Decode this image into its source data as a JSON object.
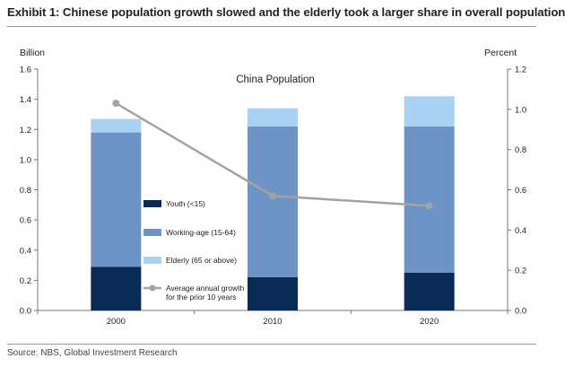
{
  "title": "Exhibit 1: Chinese population growth slowed and the elderly took a larger share in overall population",
  "source": "Source: NBS, Global Investment Research",
  "chart_data": {
    "type": "bar",
    "stacked": true,
    "title": "China Population",
    "ylabel_left": "Billion",
    "ylabel_right": "Percent",
    "categories": [
      "2000",
      "2010",
      "2020"
    ],
    "ylim_left": [
      0,
      1.6
    ],
    "yticks_left": [
      "0.0",
      "0.2",
      "0.4",
      "0.6",
      "0.8",
      "1.0",
      "1.2",
      "1.4",
      "1.6"
    ],
    "ylim_right": [
      0,
      1.2
    ],
    "yticks_right": [
      "0.0",
      "0.2",
      "0.4",
      "0.6",
      "0.8",
      "1.0",
      "1.2"
    ],
    "series": [
      {
        "name": "Youth (<15)",
        "axis": "left",
        "color": "#0b2b57",
        "values": [
          0.29,
          0.22,
          0.25
        ]
      },
      {
        "name": "Working-age (15-64)",
        "axis": "left",
        "color": "#6e93c7",
        "values": [
          0.89,
          1.0,
          0.97
        ]
      },
      {
        "name": "Elderly (65 or above)",
        "axis": "left",
        "color": "#a9d1f2",
        "values": [
          0.09,
          0.12,
          0.2
        ]
      },
      {
        "name": "Average annual growth for the prior 10 years",
        "axis": "right",
        "type": "line",
        "color": "#a3a3a3",
        "values": [
          1.03,
          0.57,
          0.52
        ]
      }
    ],
    "legend": [
      "Youth (<15)",
      "Working-age (15-64)",
      "Elderly (65 or above)",
      "Average annual growth|for the prior 10 years"
    ]
  }
}
